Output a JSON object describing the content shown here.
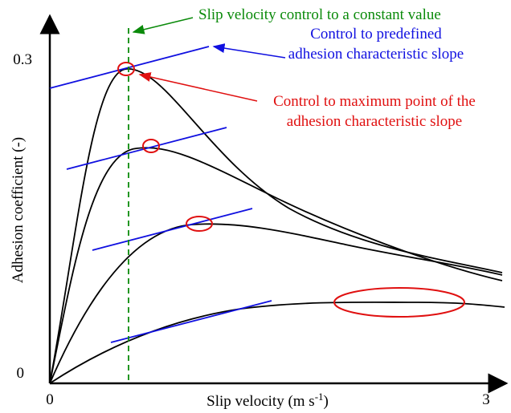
{
  "axes": {
    "y_label": "Adhesion coefficient (-)",
    "x_label": {
      "main": "Slip velocity (m s",
      "superscript": "-1",
      "close": ")"
    },
    "x_start": "0",
    "x_end": "3",
    "y_start": "0",
    "y_end": "0.3"
  },
  "annotations": {
    "green": "Slip velocity control to a constant value",
    "blue": [
      "Control to predefined",
      "adhesion characteristic slope"
    ],
    "red": [
      "Control to maximum point of the",
      "adhesion characteristic slope"
    ]
  }
}
